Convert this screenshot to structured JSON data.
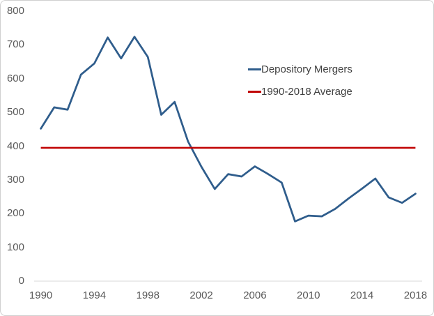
{
  "chart_data": {
    "type": "line",
    "title": "",
    "xlabel": "",
    "ylabel": "",
    "x": [
      1990,
      1991,
      1992,
      1993,
      1994,
      1995,
      1996,
      1997,
      1998,
      1999,
      2000,
      2001,
      2002,
      2003,
      2004,
      2005,
      2006,
      2007,
      2008,
      2009,
      2010,
      2011,
      2012,
      2013,
      2014,
      2015,
      2016,
      2017,
      2018
    ],
    "series": [
      {
        "name": "Depository Mergers",
        "color": "#2f5d8c",
        "values": [
          452,
          515,
          508,
          612,
          645,
          722,
          660,
          724,
          664,
          493,
          531,
          414,
          339,
          273,
          317,
          310,
          340,
          317,
          292,
          177,
          194,
          192,
          214,
          245,
          274,
          304,
          248,
          232,
          259
        ]
      },
      {
        "name": "1990-2018 Average",
        "color": "#c00000",
        "constant": 395
      }
    ],
    "ylim": [
      0,
      800
    ],
    "y_ticks": [
      0,
      100,
      200,
      300,
      400,
      500,
      600,
      700,
      800
    ],
    "x_ticks": [
      1990,
      1994,
      1998,
      2002,
      2006,
      2010,
      2014,
      2018
    ],
    "grid": false,
    "legend_position": "center-right"
  },
  "legend": {
    "items": [
      {
        "label": "Depository Mergers",
        "color": "#2f5d8c"
      },
      {
        "label": "1990-2018 Average",
        "color": "#c00000"
      }
    ]
  },
  "colors": {
    "series_blue": "#2f5d8c",
    "series_red": "#c00000",
    "axis_line": "#d9d9d9",
    "tick_label": "#595959",
    "legend_text": "#404040",
    "frame_border": "#cfcfcf",
    "background": "#ffffff"
  }
}
